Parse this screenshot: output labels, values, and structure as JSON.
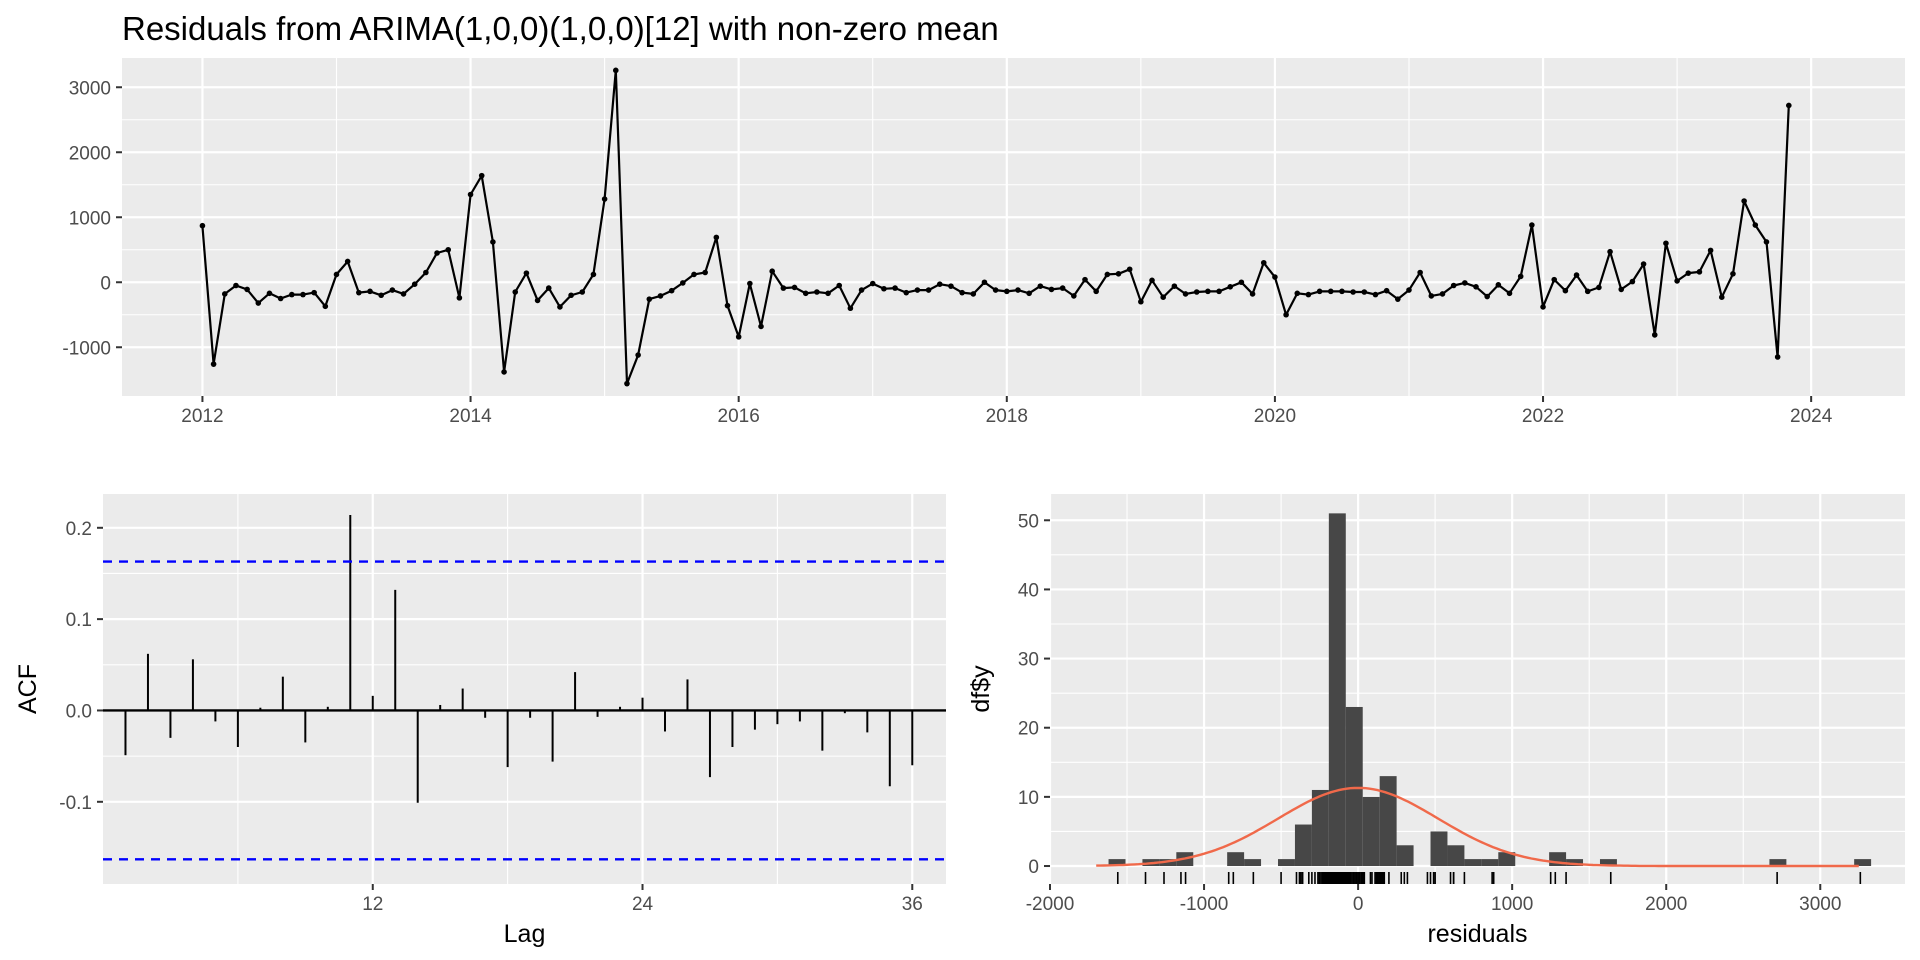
{
  "chart_data": [
    {
      "type": "line",
      "title": "Residuals from ARIMA(1,0,0)(1,0,0)[12] with non-zero mean",
      "xlabel": "",
      "ylabel": "",
      "xlim": [
        2011.4,
        2024.7
      ],
      "ylim": [
        -1750,
        3450
      ],
      "x_ticks": [
        2012,
        2014,
        2016,
        2018,
        2020,
        2022,
        2024
      ],
      "x_tick_labels": [
        "2012",
        "2014",
        "2016",
        "2018",
        "2020",
        "2022",
        "2024"
      ],
      "y_ticks": [
        -1000,
        0,
        1000,
        2000,
        3000
      ],
      "y_tick_labels": [
        "-1000",
        "0",
        "1000",
        "2000",
        "3000"
      ],
      "start": 2012,
      "frequency": 12,
      "grid": true,
      "series": [
        {
          "color": "#000000",
          "values": [
            870,
            -1260,
            -180,
            -50,
            -110,
            -320,
            -170,
            -250,
            -190,
            -190,
            -160,
            -370,
            120,
            320,
            -160,
            -140,
            -200,
            -120,
            -180,
            -30,
            150,
            450,
            500,
            -240,
            1350,
            1640,
            620,
            -1380,
            -150,
            140,
            -280,
            -90,
            -380,
            -200,
            -150,
            120,
            1280,
            3260,
            -1560,
            -1120,
            -260,
            -210,
            -130,
            -10,
            120,
            150,
            690,
            -360,
            -840,
            -20,
            -680,
            170,
            -90,
            -80,
            -170,
            -150,
            -170,
            -50,
            -400,
            -120,
            -20,
            -100,
            -90,
            -160,
            -120,
            -120,
            -30,
            -60,
            -160,
            -180,
            0,
            -120,
            -140,
            -120,
            -170,
            -60,
            -110,
            -90,
            -210,
            40,
            -140,
            120,
            130,
            200,
            -300,
            30,
            -230,
            -60,
            -180,
            -150,
            -140,
            -140,
            -70,
            0,
            -180,
            300,
            80,
            -500,
            -170,
            -190,
            -140,
            -140,
            -140,
            -150,
            -150,
            -190,
            -130,
            -260,
            -120,
            150,
            -210,
            -180,
            -50,
            -10,
            -70,
            -220,
            -40,
            -170,
            90,
            880,
            -380,
            40,
            -130,
            110,
            -140,
            -80,
            470,
            -110,
            10,
            280,
            -810,
            600,
            20,
            140,
            160,
            490,
            -230,
            130,
            1250,
            880,
            620,
            -1150,
            2720
          ]
        }
      ]
    },
    {
      "type": "bar",
      "title": "",
      "xlabel": "Lag",
      "ylabel": "ACF",
      "xlim": [
        0,
        37.5
      ],
      "ylim": [
        -0.19,
        0.237
      ],
      "x_ticks": [
        12,
        24,
        36
      ],
      "x_tick_labels": [
        "12",
        "24",
        "36"
      ],
      "y_ticks": [
        -0.1,
        0.0,
        0.1,
        0.2
      ],
      "y_tick_labels": [
        "-0.1",
        "0.0",
        "0.1",
        "0.2"
      ],
      "lags": [
        1,
        2,
        3,
        4,
        5,
        6,
        7,
        8,
        9,
        10,
        11,
        12,
        13,
        14,
        15,
        16,
        17,
        18,
        19,
        20,
        21,
        22,
        23,
        24,
        25,
        26,
        27,
        28,
        29,
        30,
        31,
        32,
        33,
        34,
        35,
        36
      ],
      "values": [
        -0.049,
        0.062,
        -0.03,
        0.056,
        -0.012,
        -0.04,
        0.003,
        0.037,
        -0.035,
        0.004,
        0.214,
        0.016,
        0.132,
        -0.101,
        0.006,
        0.024,
        -0.008,
        -0.062,
        -0.008,
        -0.056,
        0.042,
        -0.007,
        0.004,
        0.014,
        -0.023,
        0.034,
        -0.073,
        -0.04,
        -0.021,
        -0.015,
        -0.012,
        -0.044,
        -0.003,
        -0.024,
        -0.083,
        -0.06
      ],
      "conf_limit": 0.163,
      "conf_color": "#0000FF",
      "grid": true
    },
    {
      "type": "histogram",
      "title": "",
      "xlabel": "residuals",
      "ylabel": "df$y",
      "xlim": [
        -2000,
        3550
      ],
      "ylim": [
        -2.6,
        53.8
      ],
      "x_ticks": [
        -2000,
        -1000,
        0,
        1000,
        2000,
        3000
      ],
      "x_tick_labels": [
        "-2000",
        "-1000",
        "0",
        "1000",
        "2000",
        "3000"
      ],
      "y_ticks": [
        0,
        10,
        20,
        30,
        40,
        50
      ],
      "y_tick_labels": [
        "0",
        "10",
        "20",
        "30",
        "40",
        "50"
      ],
      "bin_width": 110,
      "bins": [
        {
          "start": -1620,
          "count": 1
        },
        {
          "start": -1400,
          "count": 1
        },
        {
          "start": -1290,
          "count": 1
        },
        {
          "start": -1180,
          "count": 2
        },
        {
          "start": -850,
          "count": 2
        },
        {
          "start": -740,
          "count": 1
        },
        {
          "start": -520,
          "count": 1
        },
        {
          "start": -410,
          "count": 6
        },
        {
          "start": -300,
          "count": 11
        },
        {
          "start": -190,
          "count": 51
        },
        {
          "start": -80,
          "count": 23
        },
        {
          "start": 30,
          "count": 10
        },
        {
          "start": 140,
          "count": 13
        },
        {
          "start": 250,
          "count": 3
        },
        {
          "start": 470,
          "count": 5
        },
        {
          "start": 580,
          "count": 3
        },
        {
          "start": 690,
          "count": 1
        },
        {
          "start": 800,
          "count": 1
        },
        {
          "start": 910,
          "count": 2
        },
        {
          "start": 1240,
          "count": 2
        },
        {
          "start": 1350,
          "count": 1
        },
        {
          "start": 1570,
          "count": 1
        },
        {
          "start": 2670,
          "count": 1
        },
        {
          "start": 3220,
          "count": 1
        }
      ],
      "bar_color": "#474747",
      "density_curve": {
        "mean": 0,
        "sd": 520,
        "peak": 11.3,
        "from": -1700,
        "to": 3250,
        "color": "#F0694A"
      },
      "rug_color": "#000000",
      "grid": true
    }
  ]
}
